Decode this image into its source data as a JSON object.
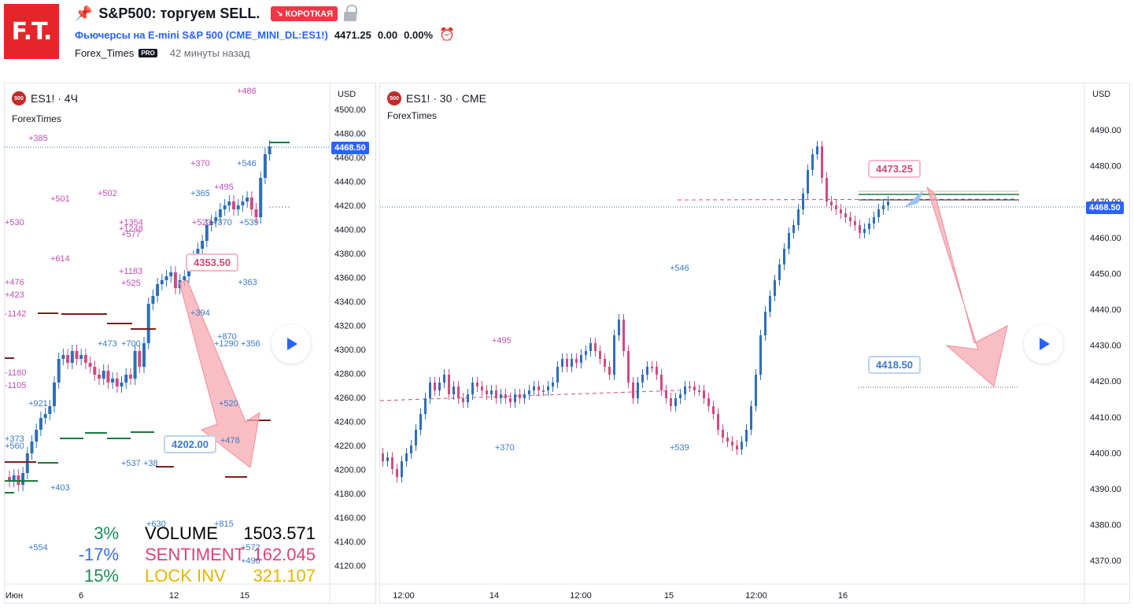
{
  "header": {
    "logo_text": "F.T.",
    "title": "S&P500: торгуем SELL.",
    "direction_badge": "↘ КОРОТКАЯ",
    "symbol_name": "Фьючерсы на E-mini S&P 500",
    "symbol_code": "(CME_MINI_DL:ES1!)",
    "last_price": "4471.25",
    "change": "0.00",
    "change_pct": "0.00%",
    "author": "Forex_Times",
    "author_badge": "PRO",
    "published": "42 минуты назад"
  },
  "left_chart": {
    "icon_label": "500",
    "legend": "ES1! · 4Ч",
    "sublegend": "ForexTimes",
    "currency": "USD",
    "price_ticks": [
      "4500.00",
      "4480.00",
      "4460.00",
      "4440.00",
      "4420.00",
      "4400.00",
      "4380.00",
      "4360.00",
      "4340.00",
      "4320.00",
      "4300.00",
      "4280.00",
      "4260.00",
      "4240.00",
      "4220.00",
      "4200.00",
      "4180.00",
      "4160.00",
      "4140.00",
      "4120.00"
    ],
    "time_ticks": [
      "Июн",
      "6",
      "12",
      "15"
    ],
    "current_price_tag": "4468.50",
    "callout_high": "4353.50",
    "callout_low": "4202.00",
    "annotations_pink": [
      "+486",
      "+385",
      "+370",
      "+501",
      "+502",
      "+495",
      "+530",
      "+1354",
      "+1248",
      "+577",
      "+523",
      "+614",
      "+1183",
      "+525",
      "+476",
      "+423",
      "-1142",
      "-1180",
      "-1105"
    ],
    "annotations_blue": [
      "+546",
      "+365",
      "+370",
      "+539",
      "+363",
      "+394",
      "+870",
      "+1290",
      "+356",
      "+473",
      "+700",
      "+520",
      "+921",
      "+373",
      "+560",
      "+537",
      "+38",
      "+478",
      "+403",
      "+630",
      "+815",
      "+554",
      "+572",
      "+496"
    ],
    "stats": [
      {
        "pct": "3%",
        "label": "VOLUME",
        "value": "1503.571",
        "pct_color": "#1b8a5a",
        "label_color": "#000000",
        "value_color": "#000000"
      },
      {
        "pct": "-17%",
        "label": "SENTIMENT",
        "value": "162.045",
        "pct_color": "#3a6bd8",
        "label_color": "#e0407a",
        "value_color": "#e0407a"
      },
      {
        "pct": "15%",
        "label": "LOCK INV",
        "value": "321.107",
        "pct_color": "#1b8a5a",
        "label_color": "#e8b400",
        "value_color": "#e8b400"
      }
    ]
  },
  "right_chart": {
    "icon_label": "500",
    "legend": "ES1! · 30 · CME",
    "sublegend": "ForexTimes",
    "currency": "USD",
    "price_ticks": [
      "4490.00",
      "4480.00",
      "4470.00",
      "4460.00",
      "4450.00",
      "4440.00",
      "4430.00",
      "4420.00",
      "4410.00",
      "4400.00",
      "4390.00",
      "4380.00",
      "4370.00"
    ],
    "time_ticks": [
      "12:00",
      "14",
      "12:00",
      "15",
      "12:00",
      "16"
    ],
    "current_price_tag": "4468.50",
    "callout_high": "4473.25",
    "callout_low": "4418.50",
    "annotations_pink": [
      "+495"
    ],
    "annotations_blue": [
      "+546",
      "+370",
      "+539"
    ]
  },
  "colors": {
    "up": "#2e6fb8",
    "down": "#d14a84",
    "accent": "#2962ff",
    "arrow": "#f7a8b0"
  }
}
